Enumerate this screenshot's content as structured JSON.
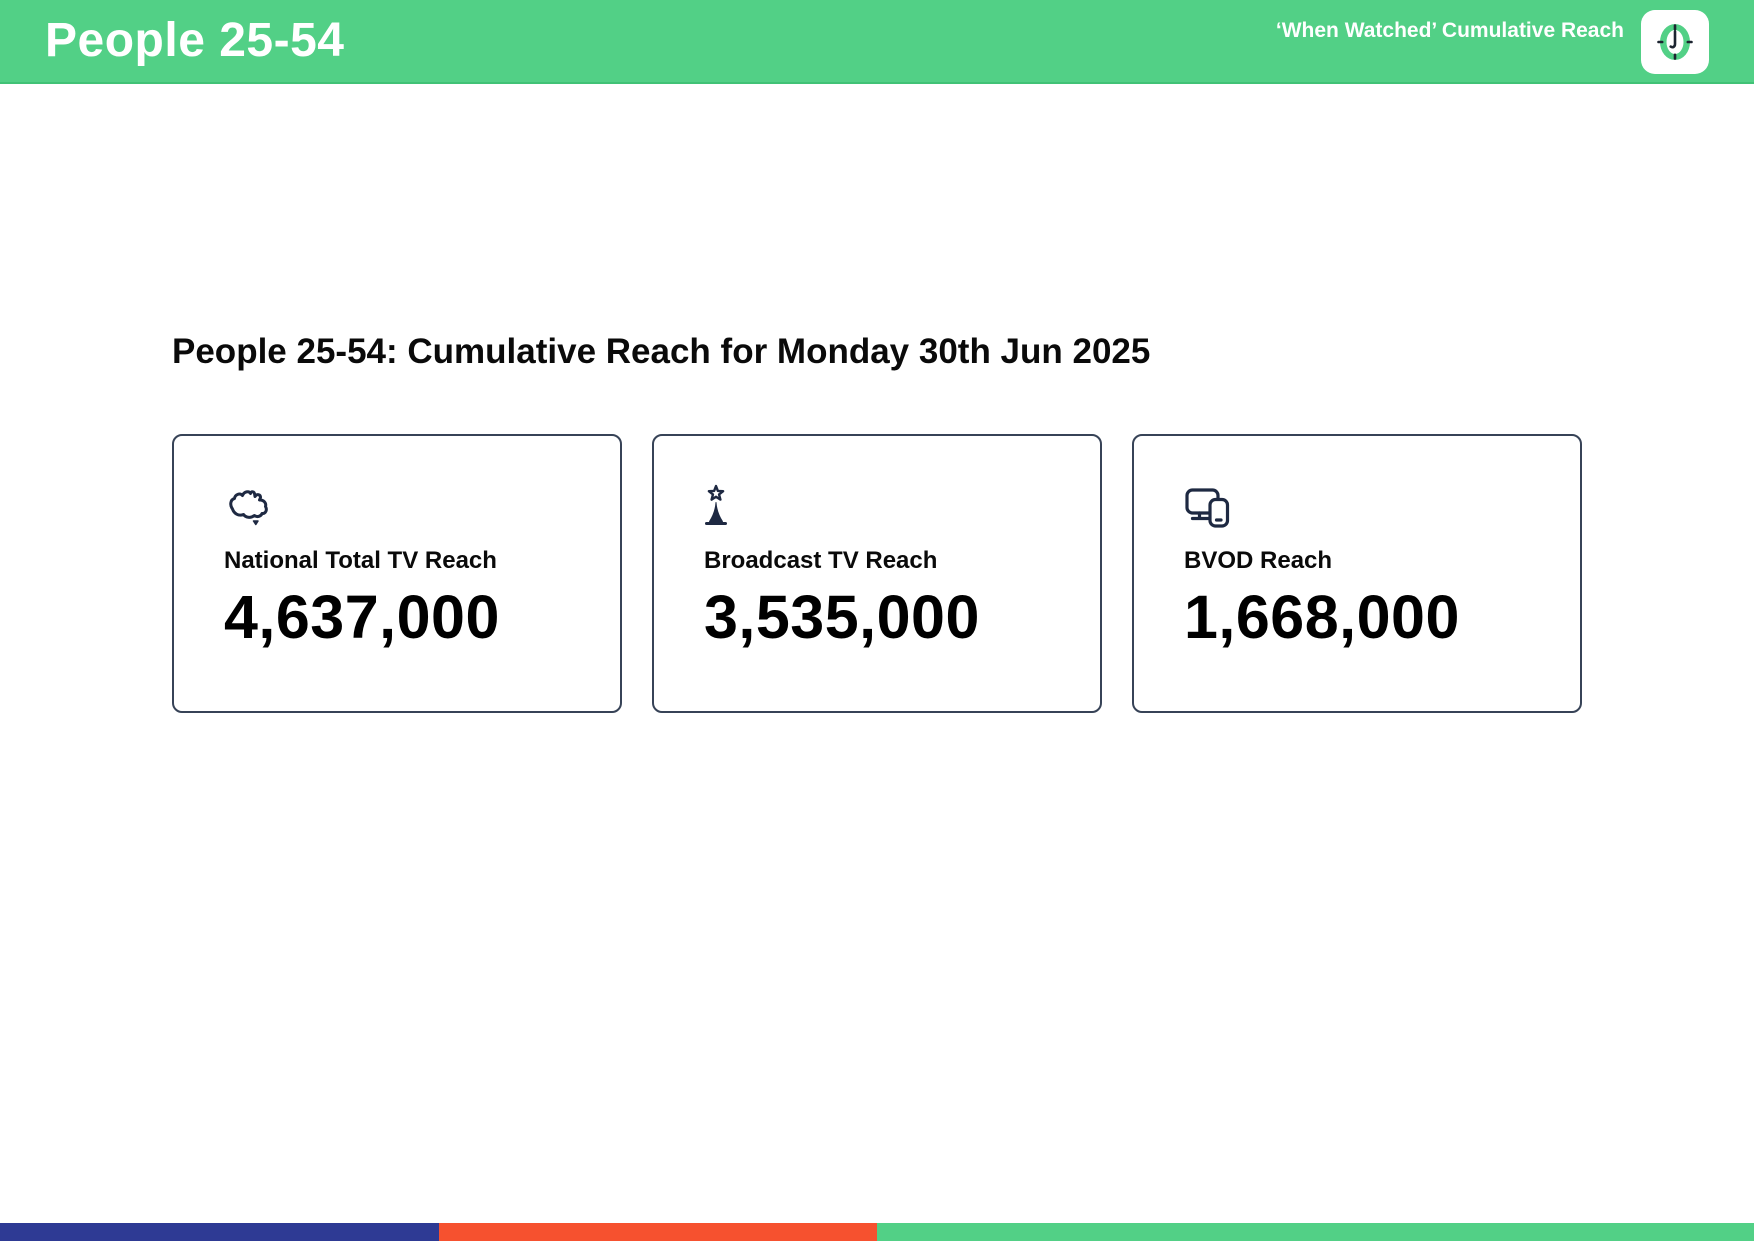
{
  "header": {
    "title": "People 25-54",
    "right_label": "‘When Watched’ Cumulative Reach",
    "logo_icon": "clock-app-icon",
    "bg_color": "#52d086"
  },
  "main": {
    "heading": "People 25-54: Cumulative Reach for Monday 30th Jun 2025",
    "cards": [
      {
        "icon": "australia-map-icon",
        "label": "National Total TV Reach",
        "value": "4,637,000"
      },
      {
        "icon": "broadcast-tower-icon",
        "label": "Broadcast TV Reach",
        "value": "3,535,000"
      },
      {
        "icon": "devices-icon",
        "label": "BVOD Reach",
        "value": "1,668,000"
      }
    ]
  },
  "footer": {
    "segments": [
      {
        "name": "blue-segment",
        "color": "#2e3a94",
        "width_pct": 25
      },
      {
        "name": "orange-segment",
        "color": "#f6512f",
        "width_pct": 25
      },
      {
        "name": "green-segment",
        "color": "#52d086",
        "width_pct": 50
      }
    ]
  },
  "colors": {
    "header_green": "#52d086",
    "icon_navy": "#1e2942",
    "card_border": "#374357",
    "text_black": "#0a0a0a"
  }
}
